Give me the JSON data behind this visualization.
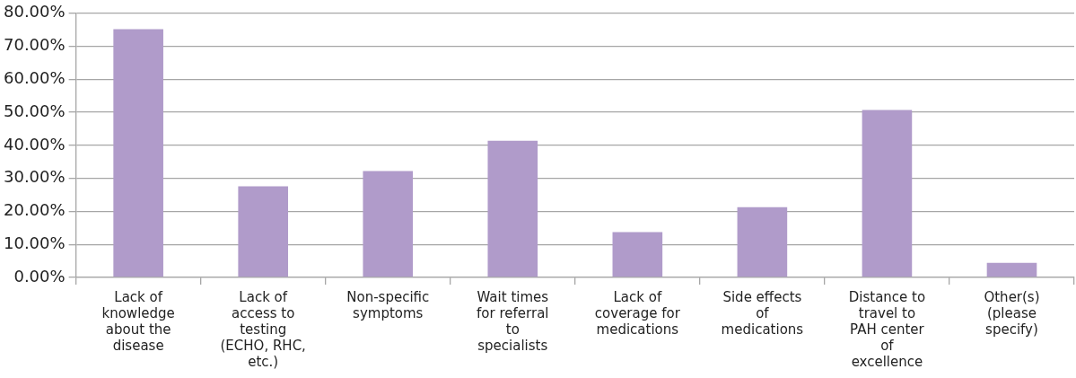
{
  "chart_data": {
    "type": "bar",
    "categories": [
      "Lack of knowledge about the disease",
      "Lack of access to testing (ECHO, RHC, etc.)",
      "Non-specific symptoms",
      "Wait times for referral to specialists",
      "Lack of coverage for medications",
      "Side effects of medications",
      "Distance to travel to PAH center of excellence",
      "Other(s) (please specify)"
    ],
    "values": [
      75.2,
      27.6,
      32.2,
      41.4,
      13.7,
      21.3,
      50.7,
      4.4
    ],
    "color": "#b09bca",
    "ylim": [
      0,
      80
    ],
    "yticks": [
      {
        "value": 0,
        "label": "0.00%"
      },
      {
        "value": 10,
        "label": "10.00%"
      },
      {
        "value": 20,
        "label": "20.00%"
      },
      {
        "value": 30,
        "label": "30.00%"
      },
      {
        "value": 40,
        "label": "40.00%"
      },
      {
        "value": 50,
        "label": "50.00%"
      },
      {
        "value": 60,
        "label": "60.00%"
      },
      {
        "value": 70,
        "label": "70.00%"
      },
      {
        "value": 80,
        "label": "80.00%"
      }
    ],
    "grid": "y",
    "legend": false
  }
}
